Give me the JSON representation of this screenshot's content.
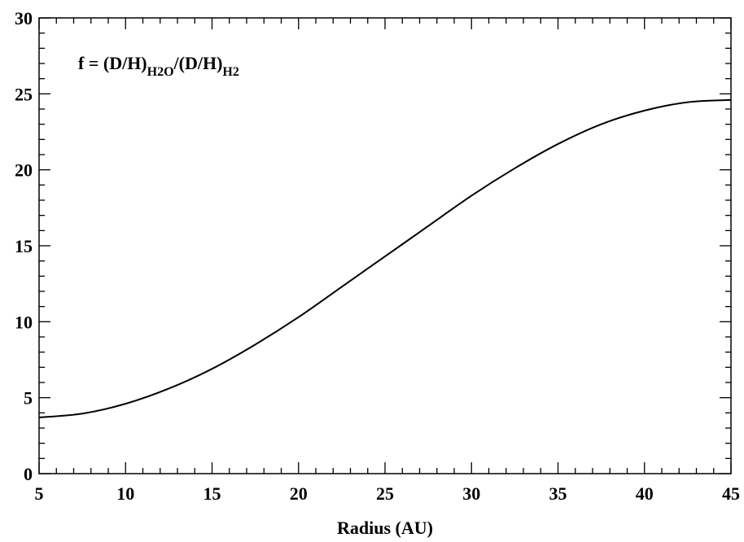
{
  "chart_data": {
    "type": "line",
    "title": "",
    "xlabel": "Radius (AU)",
    "ylabel": "",
    "xlim": [
      5,
      45
    ],
    "ylim": [
      0,
      30
    ],
    "x_ticks": [
      5,
      10,
      15,
      20,
      25,
      30,
      35,
      40,
      45
    ],
    "y_ticks": [
      0,
      5,
      10,
      15,
      20,
      25,
      30
    ],
    "grid": false,
    "annotation": {
      "main": "f = (D/H)",
      "sub1": "H2O",
      "mid": "/(D/H)",
      "sub2": "H2"
    },
    "series": [
      {
        "color": "#000000",
        "x": [
          5,
          7.5,
          10,
          12.5,
          15,
          17.5,
          20,
          22.5,
          25,
          27.5,
          30,
          32.5,
          35,
          37.5,
          40,
          42.5,
          45
        ],
        "y": [
          3.7,
          3.95,
          4.6,
          5.6,
          6.9,
          8.5,
          10.3,
          12.3,
          14.3,
          16.3,
          18.3,
          20.1,
          21.7,
          23.0,
          23.9,
          24.45,
          24.6
        ]
      }
    ]
  }
}
